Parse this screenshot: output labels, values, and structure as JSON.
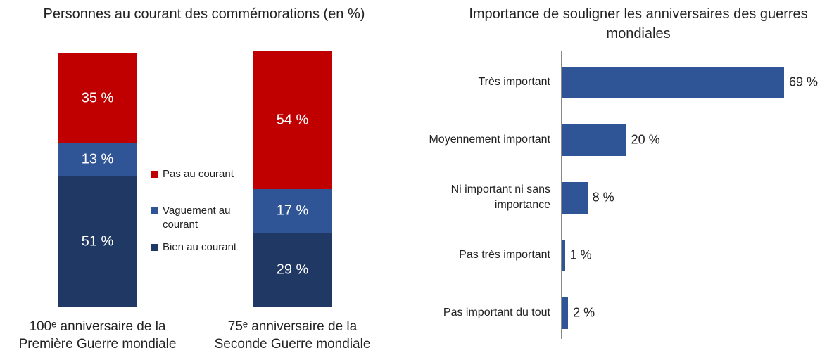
{
  "chart_data": [
    {
      "type": "stacked_bar",
      "title": "Personnes au courant des commémorations (en %)",
      "categories": [
        "100ᵉ anniversaire de la Première Guerre mondiale",
        "75ᵉ anniversaire de la Seconde Guerre mondiale"
      ],
      "series": [
        {
          "name": "Pas au courant",
          "color": "#c00000",
          "values": [
            35,
            54
          ],
          "value_labels": [
            "35 %",
            "54 %"
          ]
        },
        {
          "name": "Vaguement au courant",
          "color": "#2f5597",
          "values": [
            13,
            17
          ],
          "value_labels": [
            "13 %",
            "17 %"
          ]
        },
        {
          "name": "Bien au courant",
          "color": "#203864",
          "values": [
            51,
            29
          ],
          "value_labels": [
            "51 %",
            "29 %"
          ]
        }
      ]
    },
    {
      "type": "hbar",
      "title": "Importance de souligner les anniversaires des guerres mondiales",
      "color": "#2f5597",
      "categories": [
        "Très important",
        "Moyennement important",
        "Ni important ni sans importance",
        "Pas très important",
        "Pas important du tout"
      ],
      "values": [
        69,
        20,
        8,
        1,
        2
      ],
      "value_labels": [
        "69 %",
        "20 %",
        "8 %",
        "1 %",
        "2 %"
      ]
    }
  ]
}
